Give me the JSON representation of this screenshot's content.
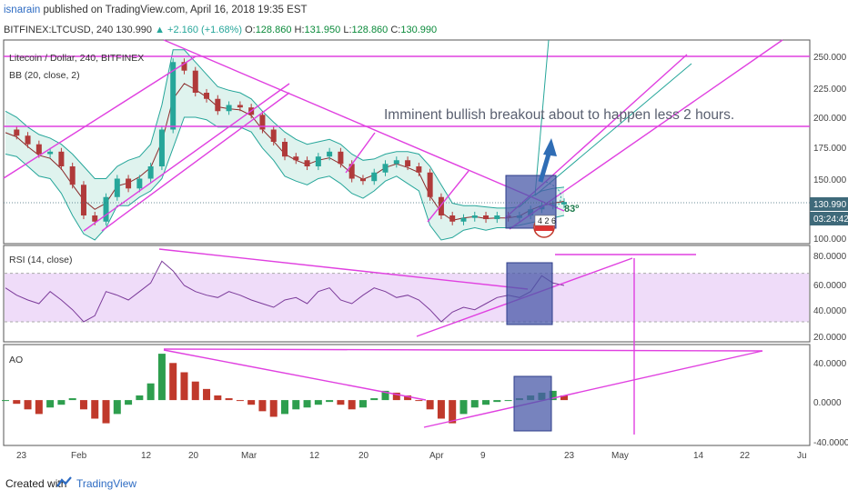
{
  "header": {
    "user": "isnarain",
    "published": " published on TradingView.com, April 16, 2018 19:35 EST",
    "symbol": "BITFINEX:LTCUSD, 240",
    "last": "130.990",
    "change": "▲ +2.160 (+1.68%)",
    "o_label": "O:",
    "o_val": "128.860",
    "h_label": "H:",
    "h_val": "131.950",
    "l_label": "L:",
    "l_val": "128.860",
    "c_label": "C:",
    "c_val": "130.990"
  },
  "colors": {
    "pink": "#e040e0",
    "teal": "#26a69a",
    "blue_box": "#4a5aa8",
    "bb_fill": "#d7f0ea",
    "rsi_band": "#efdcf9",
    "price_label": "#3f6a7a"
  },
  "chart_data": [
    {
      "type": "line",
      "title": "Litecoin / Dollar, 240, BITFINEX",
      "indicator": "BB (20, close, 2)",
      "annotation": "Imminent bullish breakout about to happen less 2 hours.",
      "angle_label": "83º",
      "countdown_label": "4 2 6",
      "last_price_label": "130.990",
      "time_label": "03:24:42",
      "y_ticks": [
        "250.000",
        "225.000",
        "200.000",
        "175.000",
        "150.000",
        "100.000"
      ],
      "ylim": [
        100,
        260
      ],
      "x_ticks": [
        "23",
        "Feb",
        "12",
        "20",
        "Mar",
        "12",
        "20",
        "Apr",
        "9",
        "23",
        "May",
        "14",
        "22",
        "Ju"
      ],
      "x": [
        0,
        12,
        24,
        36,
        48,
        60,
        72,
        84,
        96,
        108,
        120,
        132,
        144,
        156,
        168,
        180,
        192,
        204,
        216,
        228,
        240,
        252,
        264,
        276,
        288,
        300,
        312,
        324,
        336,
        348,
        360,
        372,
        384,
        396,
        408,
        420,
        432,
        444,
        456,
        468,
        480,
        492,
        504,
        516,
        528,
        540,
        552,
        564,
        576,
        588,
        600
      ],
      "close": [
        190,
        185,
        178,
        170,
        172,
        160,
        145,
        120,
        115,
        135,
        150,
        142,
        150,
        160,
        190,
        245,
        238,
        220,
        215,
        205,
        210,
        208,
        202,
        190,
        180,
        168,
        165,
        160,
        168,
        172,
        162,
        150,
        148,
        155,
        162,
        165,
        160,
        155,
        135,
        120,
        115,
        118,
        120,
        117,
        120,
        118,
        120,
        125,
        128,
        129,
        131
      ],
      "bb_upper": [
        205,
        200,
        192,
        186,
        183,
        178,
        170,
        160,
        150,
        150,
        160,
        165,
        168,
        178,
        210,
        255,
        255,
        245,
        235,
        225,
        222,
        220,
        215,
        205,
        196,
        188,
        182,
        178,
        180,
        182,
        178,
        170,
        165,
        166,
        170,
        172,
        172,
        170,
        160,
        145,
        130,
        128,
        128,
        127,
        126,
        126,
        127,
        135,
        140,
        142,
        143
      ],
      "bb_lower": [
        170,
        168,
        160,
        152,
        150,
        138,
        120,
        105,
        100,
        110,
        128,
        128,
        135,
        140,
        150,
        175,
        200,
        200,
        198,
        192,
        192,
        192,
        188,
        175,
        165,
        152,
        148,
        145,
        150,
        152,
        146,
        138,
        134,
        140,
        148,
        152,
        146,
        140,
        112,
        100,
        102,
        108,
        110,
        108,
        110,
        110,
        112,
        114,
        116,
        118,
        120
      ]
    },
    {
      "type": "line",
      "title": "RSI (14, close)",
      "y_ticks": [
        "80.0000",
        "60.0000",
        "40.0000",
        "20.0000"
      ],
      "ylim": [
        15,
        90
      ],
      "band": [
        30,
        70
      ],
      "values": [
        58,
        52,
        48,
        45,
        55,
        48,
        40,
        30,
        35,
        55,
        52,
        48,
        55,
        62,
        80,
        72,
        60,
        55,
        52,
        50,
        55,
        52,
        48,
        45,
        42,
        48,
        50,
        45,
        55,
        58,
        48,
        45,
        52,
        58,
        55,
        50,
        52,
        48,
        40,
        30,
        38,
        42,
        40,
        45,
        50,
        52,
        50,
        55,
        68,
        62,
        60
      ]
    },
    {
      "type": "bar",
      "title": "AO",
      "y_ticks": [
        "40.0000",
        "0.0000",
        "-40.0000"
      ],
      "ylim": [
        -45,
        55
      ],
      "values": [
        0,
        -4,
        -10,
        -15,
        -8,
        -5,
        2,
        -10,
        -20,
        -25,
        -15,
        -5,
        5,
        18,
        50,
        40,
        30,
        20,
        12,
        5,
        2,
        0,
        -5,
        -12,
        -18,
        -15,
        -10,
        -8,
        -5,
        -2,
        -5,
        -10,
        -8,
        2,
        10,
        8,
        5,
        0,
        -10,
        -20,
        -25,
        -15,
        -8,
        -5,
        -2,
        0,
        2,
        5,
        8,
        10,
        5
      ]
    }
  ],
  "footer": {
    "created": "Created with",
    "brand": "TradingView"
  }
}
